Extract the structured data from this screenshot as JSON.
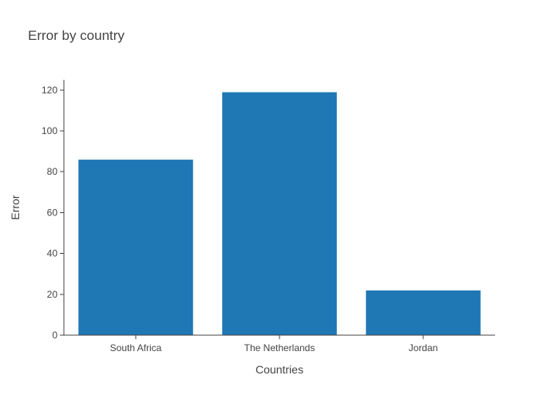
{
  "chart_data": {
    "type": "bar",
    "title": "Error by country",
    "xlabel": "Countries",
    "ylabel": "Error",
    "categories": [
      "South Africa",
      "The Netherlands",
      "Jordan"
    ],
    "values": [
      86,
      119,
      22
    ],
    "ylim": [
      0,
      125
    ],
    "yticks": [
      0,
      20,
      40,
      60,
      80,
      100,
      120
    ],
    "grid": false,
    "legend": "none",
    "bar_color": "#1f77b4",
    "bar_outline_color": "#ffffff",
    "axis_color": "#444444"
  }
}
